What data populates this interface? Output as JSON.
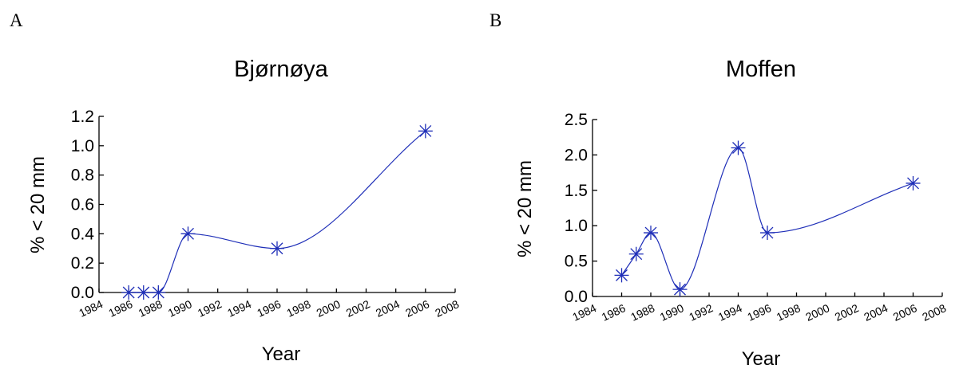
{
  "panels": [
    {
      "letter": "A"
    },
    {
      "letter": "B"
    }
  ],
  "chart_data": [
    {
      "type": "line",
      "title": "Bjørnøya",
      "xlabel": "Year",
      "ylabel": "% < 20 mm",
      "xlim": [
        1984,
        2008
      ],
      "ylim": [
        0,
        1.2
      ],
      "xticks": [
        "1984",
        "1986",
        "1988",
        "1990",
        "1992",
        "1994",
        "1996",
        "1998",
        "2000",
        "2002",
        "2004",
        "2006",
        "2008"
      ],
      "yticks": [
        "0.0",
        "0.2",
        "0.4",
        "0.6",
        "0.8",
        "1.0",
        "1.2"
      ],
      "series": [
        {
          "x": [
            1986,
            1987,
            1988,
            1990,
            1996,
            2006
          ],
          "y": [
            0.0,
            0.0,
            0.0,
            0.4,
            0.3,
            1.1
          ]
        }
      ],
      "color": "#1f2fb8",
      "grid": false
    },
    {
      "type": "line",
      "title": "Moffen",
      "xlabel": "Year",
      "ylabel": "% < 20 mm",
      "xlim": [
        1984,
        2008
      ],
      "ylim": [
        0,
        2.5
      ],
      "xticks": [
        "1984",
        "1986",
        "1988",
        "1990",
        "1992",
        "1994",
        "1996",
        "1998",
        "2000",
        "2002",
        "2004",
        "2006",
        "2008"
      ],
      "yticks": [
        "0.0",
        "0.5",
        "1.0",
        "1.5",
        "2.0",
        "2.5"
      ],
      "series": [
        {
          "x": [
            1986,
            1987,
            1988,
            1990,
            1994,
            1996,
            2006
          ],
          "y": [
            0.3,
            0.6,
            0.9,
            0.1,
            2.1,
            0.9,
            1.6
          ]
        }
      ],
      "color": "#1f2fb8",
      "grid": false
    }
  ]
}
